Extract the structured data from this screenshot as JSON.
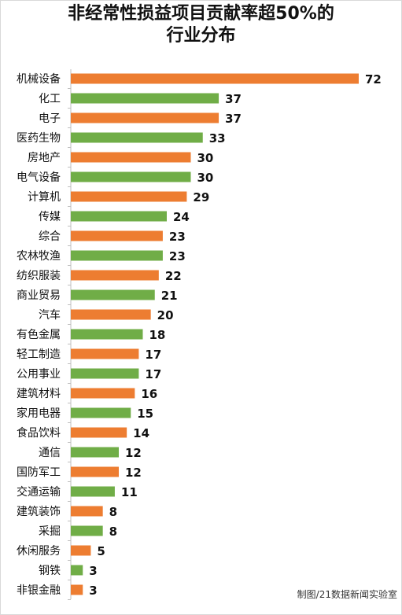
{
  "chart_data": {
    "type": "bar",
    "orientation": "horizontal",
    "title_lines": [
      "非经常性损益项目贡献率超50%的",
      "行业分布"
    ],
    "categories": [
      "机械设备",
      "化工",
      "电子",
      "医药生物",
      "房地产",
      "电气设备",
      "计算机",
      "传媒",
      "综合",
      "农林牧渔",
      "纺织服装",
      "商业贸易",
      "汽车",
      "有色金属",
      "轻工制造",
      "公用事业",
      "建筑材料",
      "家用电器",
      "食品饮料",
      "通信",
      "国防军工",
      "交通运输",
      "建筑装饰",
      "采掘",
      "休闲服务",
      "钢铁",
      "非银金融"
    ],
    "values": [
      72,
      37,
      37,
      33,
      30,
      30,
      29,
      24,
      23,
      23,
      22,
      21,
      20,
      18,
      17,
      17,
      16,
      15,
      14,
      12,
      12,
      11,
      8,
      8,
      5,
      3,
      3
    ],
    "bar_colors": [
      "#ed7d31",
      "#70ad47",
      "#ed7d31",
      "#70ad47",
      "#ed7d31",
      "#70ad47",
      "#ed7d31",
      "#70ad47",
      "#ed7d31",
      "#70ad47",
      "#ed7d31",
      "#70ad47",
      "#ed7d31",
      "#70ad47",
      "#ed7d31",
      "#70ad47",
      "#ed7d31",
      "#70ad47",
      "#ed7d31",
      "#70ad47",
      "#ed7d31",
      "#70ad47",
      "#ed7d31",
      "#70ad47",
      "#ed7d31",
      "#70ad47",
      "#ed7d31"
    ],
    "xlim": [
      0,
      72
    ],
    "grid": false,
    "data_labels": true
  },
  "colors": {
    "orange": "#ed7d31",
    "green": "#70ad47",
    "axis": "#bfbfbf"
  },
  "source": "制图/21数据新闻实验室"
}
